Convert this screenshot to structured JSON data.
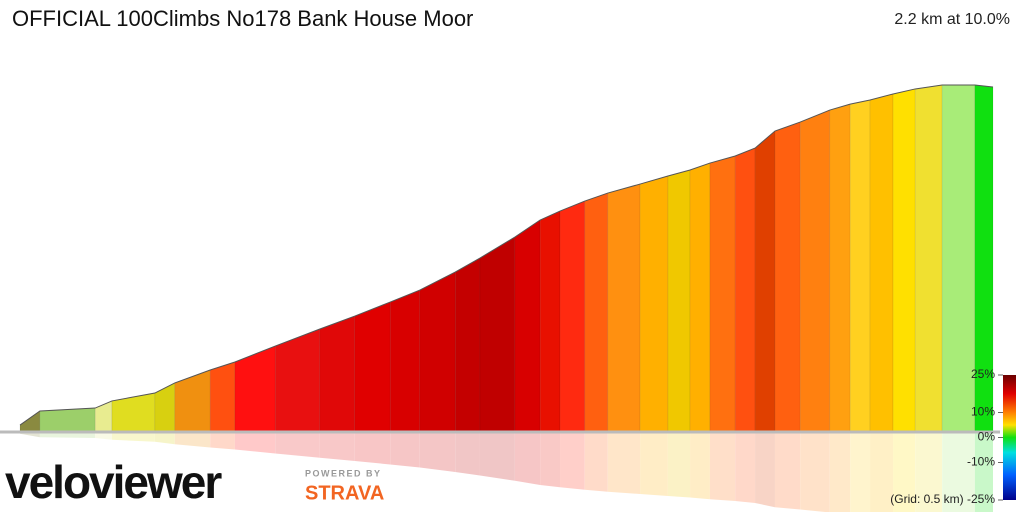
{
  "chart_data": {
    "type": "profile",
    "title": "OFFICIAL 100Climbs No178 Bank House Moor",
    "subtitle": "2.2 km at 10.0%",
    "distance": [
      0,
      0.045,
      0.17,
      0.208,
      0.305,
      0.35,
      0.43,
      0.486,
      0.577,
      0.678,
      0.757,
      0.837,
      0.904,
      0.984,
      1.04,
      1.119,
      1.176,
      1.221,
      1.277,
      1.329,
      1.402,
      1.465,
      1.515,
      1.56,
      1.617,
      1.662,
      1.707,
      1.764,
      1.831,
      1.877,
      1.922,
      1.974,
      2.024,
      2.085,
      2.159,
      2.2
    ],
    "elevation": [
      4.4,
      13.3,
      15.2,
      19.7,
      24.7,
      31.1,
      39.3,
      44.4,
      54.5,
      65.3,
      73.5,
      82.4,
      90,
      101.4,
      110.3,
      123.6,
      134.4,
      140.1,
      146.4,
      151.5,
      157.2,
      162.3,
      166.1,
      170.5,
      175,
      180,
      190.8,
      196.5,
      204.1,
      207.9,
      210.5,
      214.3,
      217.5,
      220,
      220,
      218.7
    ],
    "segment_colors": [
      "#8a8a40",
      "#9ccf6a",
      "#e8ec90",
      "#e0dd20",
      "#d8d010",
      "#f09010",
      "#ff5010",
      "#ff1010",
      "#e81010",
      "#e00808",
      "#e00000",
      "#d80000",
      "#d00000",
      "#c40000",
      "#c00000",
      "#d80000",
      "#e81000",
      "#ff2a10",
      "#ff6010",
      "#ff9010",
      "#ffb000",
      "#f0c800",
      "#ffb000",
      "#ff7010",
      "#ff5010",
      "#e04000",
      "#ff6010",
      "#ff8010",
      "#ffa010",
      "#ffd020",
      "#ffc000",
      "#ffe000",
      "#f0e030",
      "#a8ec78",
      "#10e010"
    ],
    "xlim": [
      0,
      2.2
    ],
    "ylim": [
      0,
      220
    ],
    "gradient_ticks": [
      {
        "value": 25,
        "label": "25%"
      },
      {
        "value": 10,
        "label": "10%"
      },
      {
        "value": 0,
        "label": "0%"
      },
      {
        "value": -10,
        "label": "-10%"
      },
      {
        "value": -25,
        "label": "(Grid: 0.5 km) -25%"
      }
    ],
    "gradient_lim": [
      -25,
      25
    ]
  },
  "branding": {
    "logo": "veloviewer",
    "powered_by": "POWERED BY",
    "partner": "STRAVA"
  }
}
